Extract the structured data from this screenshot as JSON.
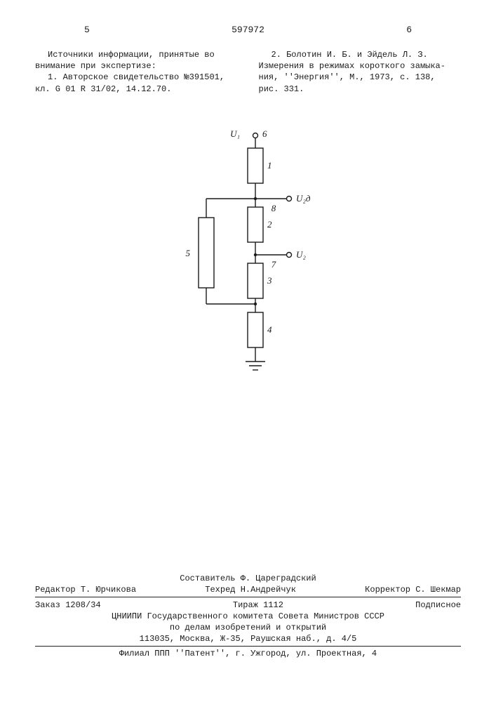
{
  "header": {
    "page_left": "5",
    "doc_number": "597972",
    "page_right": "6"
  },
  "left_column": {
    "line1": "Источники информации, принятые во",
    "line2": "внимание при экспертизе:",
    "line3": "1. Авторское свидетельство №391501,",
    "line4": "кл.  G 01 R 31/02, 14.12.70."
  },
  "right_column": {
    "line1": "2. Болотин И. Б. и Эйдель Л. З.",
    "line2": "Измерения в режимах короткого замыка-",
    "line3": "ния, ''Энергия'', М., 1973, с. 138,",
    "line4": "рис. 331."
  },
  "diagram": {
    "labels": {
      "U1": "U₁",
      "U2d": "U₂д",
      "U2": "U₂",
      "n1": "1",
      "n2": "2",
      "n3": "3",
      "n4": "4",
      "n5": "5",
      "n6": "6",
      "n7": "7",
      "n8": "8"
    },
    "colors": {
      "stroke": "#1a1a1a",
      "fill": "#ffffff"
    },
    "line_width": 1.4
  },
  "footer": {
    "compiler_label": "Составитель",
    "compiler": "Ф. Цареградский",
    "editor_label": "Редактор",
    "editor": "Т. Юрчикова",
    "techred_label": "Техред",
    "techred": "Н.Андрейчук",
    "corrector_label": "Корректор",
    "corrector": "С. Шекмар",
    "order": "Заказ 1208/34",
    "tirazh": "Тираж 1112",
    "sub": "Подписное",
    "org1": "ЦНИИПИ Государственного комитета Совета Министров СССР",
    "org2": "по делам изобретений и открытий",
    "addr1": "113035, Москва, Ж-35, Раушская наб., д. 4/5",
    "branch": "Филиал ППП ''Патент'', г. Ужгород, ул. Проектная, 4"
  }
}
